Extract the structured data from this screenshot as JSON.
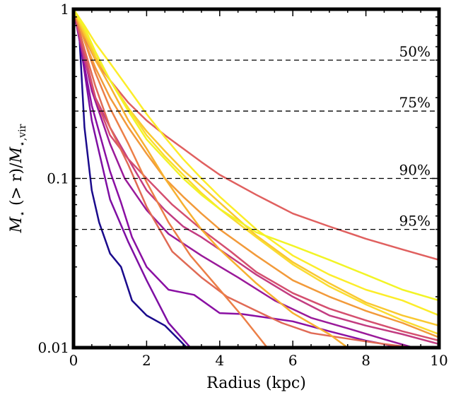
{
  "chart_data": {
    "type": "line",
    "xlabel": "Radius (kpc)",
    "ylabel_main": "M",
    "ylabel_sub_star": "⋆",
    "ylabel_mid": " (> r)/",
    "ylabel_main2": "M",
    "ylabel_sub2": "⋆,vir",
    "xlim": [
      0,
      10
    ],
    "ylim": [
      0.01,
      1
    ],
    "yscale": "log",
    "xticks": [
      0,
      2,
      4,
      6,
      8,
      10
    ],
    "xtick_labels": [
      "0",
      "2",
      "4",
      "6",
      "8",
      "10"
    ],
    "yticks": [
      0.01,
      0.1,
      1
    ],
    "ytick_labels": [
      "0.01",
      "0.1",
      "1"
    ],
    "reference_lines": [
      {
        "y": 0.5,
        "label": "50%"
      },
      {
        "y": 0.25,
        "label": "75%"
      },
      {
        "y": 0.1,
        "label": "90%"
      },
      {
        "y": 0.05,
        "label": "95%"
      }
    ],
    "series": [
      {
        "color": "#1a0a8c",
        "x": [
          0,
          0.15,
          0.3,
          0.5,
          0.7,
          1.0,
          1.3,
          1.6,
          2.0,
          2.5,
          3.1
        ],
        "y": [
          1,
          0.75,
          0.2,
          0.085,
          0.055,
          0.036,
          0.03,
          0.019,
          0.0155,
          0.0135,
          0.01
        ]
      },
      {
        "color": "#7e0fa3",
        "x": [
          0,
          0.2,
          0.5,
          1.0,
          1.5,
          2.0,
          2.6,
          3.2
        ],
        "y": [
          1,
          0.6,
          0.22,
          0.075,
          0.042,
          0.025,
          0.014,
          0.01
        ]
      },
      {
        "color": "#8a0fa3",
        "x": [
          0,
          0.2,
          0.5,
          1.0,
          1.3,
          1.6,
          2.0,
          2.6,
          3.3,
          4.0,
          4.6,
          6.0,
          7.0,
          8.0,
          9.0
        ],
        "y": [
          1,
          0.6,
          0.27,
          0.11,
          0.072,
          0.045,
          0.03,
          0.022,
          0.0205,
          0.016,
          0.0158,
          0.0143,
          0.0125,
          0.011,
          0.01
        ]
      },
      {
        "color": "#9a1a9a",
        "x": [
          0,
          0.2,
          0.5,
          1.0,
          1.4,
          2.0,
          2.6,
          3.5,
          4.5,
          5.5,
          6.5,
          7.5,
          8.5,
          9.3
        ],
        "y": [
          1,
          0.65,
          0.33,
          0.16,
          0.1,
          0.065,
          0.047,
          0.035,
          0.026,
          0.019,
          0.015,
          0.013,
          0.0112,
          0.01
        ]
      },
      {
        "color": "#c23c81",
        "x": [
          0,
          0.3,
          0.6,
          1.0,
          1.5,
          2.0,
          2.5,
          3.0,
          3.5,
          4.0,
          5.0,
          6.0,
          7.0,
          8.0,
          9.0,
          10.0
        ],
        "y": [
          1,
          0.5,
          0.3,
          0.2,
          0.13,
          0.085,
          0.065,
          0.052,
          0.045,
          0.038,
          0.027,
          0.02,
          0.0155,
          0.0135,
          0.012,
          0.0105
        ]
      },
      {
        "color": "#d44f6f",
        "x": [
          0,
          0.3,
          0.6,
          1.0,
          1.5,
          2.0,
          2.7,
          3.5,
          4.3,
          5.0,
          6.0,
          7.0,
          8.0,
          9.0,
          10.0
        ],
        "y": [
          1,
          0.55,
          0.3,
          0.18,
          0.13,
          0.1,
          0.07,
          0.05,
          0.037,
          0.028,
          0.021,
          0.017,
          0.0145,
          0.0125,
          0.011
        ]
      },
      {
        "color": "#e0605f",
        "x": [
          0,
          0.3,
          0.6,
          1.0,
          1.5,
          2.0,
          2.5,
          3.0,
          3.5,
          4.0,
          5.0,
          6.0,
          7.0,
          8.0,
          9.0,
          10.0
        ],
        "y": [
          1,
          0.68,
          0.5,
          0.38,
          0.28,
          0.22,
          0.18,
          0.15,
          0.125,
          0.105,
          0.08,
          0.062,
          0.052,
          0.044,
          0.038,
          0.033
        ]
      },
      {
        "color": "#e06a55",
        "x": [
          0,
          0.3,
          0.6,
          1.0,
          1.5,
          2.0,
          2.7,
          3.5,
          4.2,
          5.0,
          5.7,
          6.5,
          7.5,
          8.5,
          9.3
        ],
        "y": [
          1,
          0.58,
          0.35,
          0.2,
          0.12,
          0.068,
          0.037,
          0.026,
          0.02,
          0.0165,
          0.014,
          0.0122,
          0.0113,
          0.0105,
          0.01
        ]
      },
      {
        "color": "#ec7f47",
        "x": [
          0,
          0.3,
          0.6,
          1.0,
          1.5,
          2.0,
          2.6,
          3.2,
          4.0,
          4.6,
          5.3
        ],
        "y": [
          1,
          0.65,
          0.42,
          0.26,
          0.16,
          0.095,
          0.055,
          0.035,
          0.022,
          0.0155,
          0.01
        ]
      },
      {
        "color": "#f29a3a",
        "x": [
          0,
          0.3,
          0.6,
          1.0,
          1.5,
          2.0,
          2.5,
          3.0,
          3.5,
          4.0,
          5.0,
          6.0,
          7.0,
          8.0,
          9.0,
          10.0
        ],
        "y": [
          1,
          0.65,
          0.45,
          0.3,
          0.2,
          0.14,
          0.1,
          0.078,
          0.062,
          0.05,
          0.035,
          0.025,
          0.02,
          0.0165,
          0.014,
          0.0115
        ]
      },
      {
        "color": "#f7b030",
        "x": [
          0,
          0.3,
          0.6,
          1.0,
          1.5,
          2.0,
          2.5,
          3.0,
          3.5,
          4.0,
          5.0,
          6.0,
          7.0,
          7.5
        ],
        "y": [
          1,
          0.7,
          0.5,
          0.35,
          0.22,
          0.15,
          0.1,
          0.07,
          0.05,
          0.038,
          0.024,
          0.016,
          0.012,
          0.01
        ]
      },
      {
        "color": "#f9c830",
        "x": [
          0,
          0.3,
          0.6,
          1.0,
          1.5,
          2.0,
          2.5,
          3.0,
          3.5,
          4.0,
          5.0,
          6.0,
          7.0,
          8.0,
          9.0,
          10.0
        ],
        "y": [
          1,
          0.72,
          0.52,
          0.38,
          0.26,
          0.19,
          0.145,
          0.112,
          0.09,
          0.072,
          0.046,
          0.032,
          0.024,
          0.0185,
          0.0155,
          0.0135
        ]
      },
      {
        "color": "#fbdc30",
        "x": [
          0,
          0.3,
          0.6,
          1.0,
          1.5,
          2.0,
          2.5,
          3.0,
          3.5,
          4.0,
          5.0,
          6.0,
          7.0,
          8.0,
          9.0,
          10.0
        ],
        "y": [
          1,
          0.75,
          0.55,
          0.38,
          0.26,
          0.18,
          0.135,
          0.105,
          0.082,
          0.066,
          0.045,
          0.031,
          0.023,
          0.018,
          0.0145,
          0.012
        ]
      },
      {
        "color": "#fced2a",
        "x": [
          0,
          0.3,
          0.6,
          1.0,
          1.5,
          2.0,
          2.5,
          3.0,
          3.5,
          4.0,
          5.0,
          6.0,
          7.0,
          8.0,
          9.0,
          10.0
        ],
        "y": [
          1,
          0.8,
          0.63,
          0.48,
          0.34,
          0.24,
          0.175,
          0.13,
          0.1,
          0.078,
          0.05,
          0.035,
          0.027,
          0.022,
          0.019,
          0.0155
        ]
      },
      {
        "color": "#f2f426",
        "x": [
          0,
          0.3,
          0.6,
          1.0,
          1.5,
          2.0,
          2.5,
          3.0,
          3.5,
          4.0,
          5.0,
          6.0,
          7.0,
          8.0,
          9.0,
          10.0
        ],
        "y": [
          1,
          0.78,
          0.56,
          0.38,
          0.25,
          0.17,
          0.13,
          0.1,
          0.08,
          0.066,
          0.048,
          0.04,
          0.033,
          0.027,
          0.022,
          0.019
        ]
      }
    ]
  }
}
